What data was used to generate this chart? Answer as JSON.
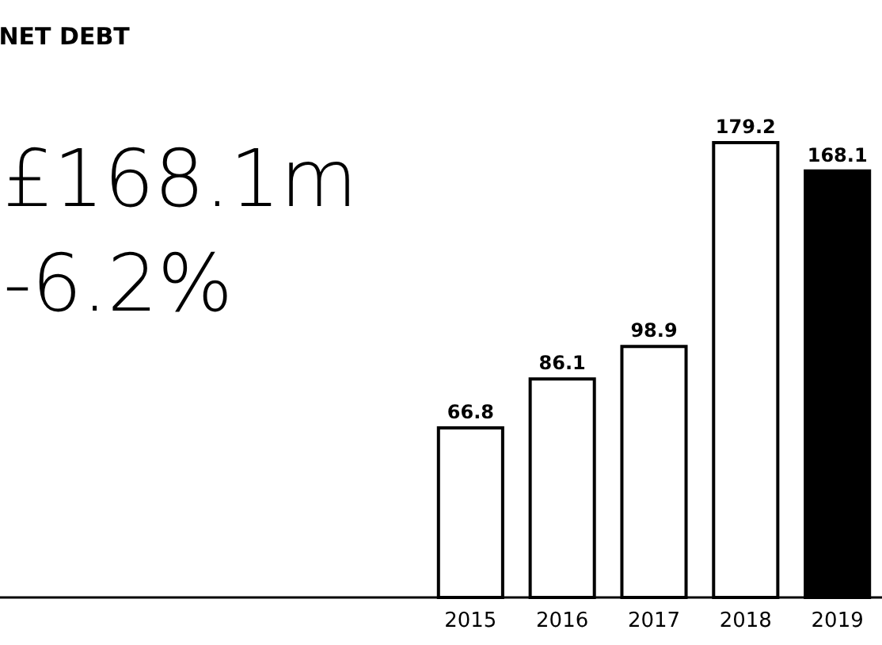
{
  "chart_data": {
    "type": "bar",
    "title": "NET DEBT",
    "annotations": [
      "£168.1m",
      "-6.2%"
    ],
    "categories": [
      "2015",
      "2016",
      "2017",
      "2018",
      "2019"
    ],
    "values": [
      66.8,
      86.1,
      98.9,
      179.2,
      168.1
    ],
    "colors": [
      "#ffffff",
      "#ffffff",
      "#ffffff",
      "#ffffff",
      "#000000"
    ],
    "data_labels": true
  }
}
